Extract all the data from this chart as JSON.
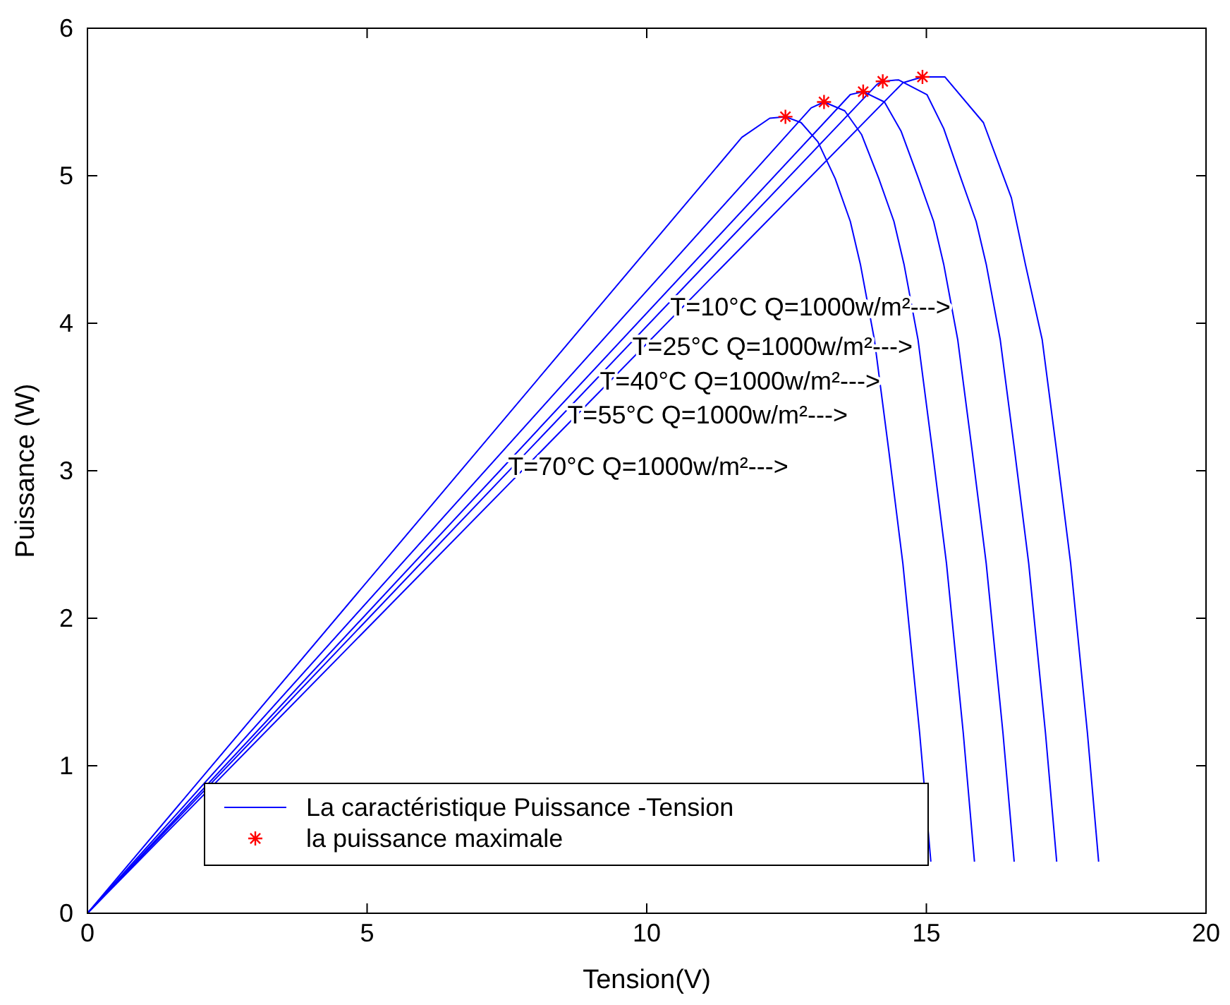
{
  "chart_data": {
    "type": "line",
    "xlabel": "Tension(V)",
    "ylabel": "Puissance (W)",
    "xlim": [
      0,
      20
    ],
    "ylim": [
      0,
      6
    ],
    "xticks": [
      0,
      5,
      10,
      15,
      20
    ],
    "yticks": [
      0,
      1,
      2,
      3,
      4,
      5,
      6
    ],
    "grid": false,
    "legend": "bottom left",
    "marker": "none",
    "line_style": "solid",
    "series": [
      {
        "name": "La caractéristique Puissance -Tension",
        "color": "#0000ff",
        "x": [
          0,
          11.7,
          12.2,
          12.48,
          12.76,
          13.06,
          13.37,
          13.64,
          13.82,
          14.07,
          14.33,
          14.58,
          14.88,
          15.08
        ],
        "values": [
          0,
          5.26,
          5.39,
          5.4,
          5.36,
          5.23,
          4.98,
          4.69,
          4.4,
          3.89,
          3.13,
          2.37,
          1.22,
          0.35
        ]
      },
      {
        "color": "#0000ff",
        "x": [
          0,
          12.94,
          13.17,
          13.54,
          13.84,
          14.15,
          14.42,
          14.6,
          14.85,
          15.11,
          15.36,
          15.66,
          15.86
        ],
        "values": [
          0,
          5.46,
          5.5,
          5.44,
          5.28,
          4.98,
          4.69,
          4.4,
          3.89,
          3.13,
          2.37,
          1.22,
          0.35
        ]
      },
      {
        "color": "#0000ff",
        "x": [
          0,
          13.64,
          13.87,
          14.25,
          14.55,
          14.86,
          15.13,
          15.31,
          15.56,
          15.82,
          16.07,
          16.37,
          16.57
        ],
        "values": [
          0,
          5.55,
          5.57,
          5.5,
          5.3,
          4.98,
          4.69,
          4.4,
          3.89,
          3.13,
          2.37,
          1.22,
          0.35
        ]
      },
      {
        "color": "#0000ff",
        "x": [
          0,
          14.12,
          14.22,
          14.5,
          15.01,
          15.31,
          15.62,
          15.89,
          16.07,
          16.32,
          16.58,
          16.83,
          17.13,
          17.33
        ],
        "values": [
          0,
          5.62,
          5.64,
          5.65,
          5.55,
          5.32,
          4.98,
          4.69,
          4.4,
          3.89,
          3.13,
          2.37,
          1.22,
          0.35
        ]
      },
      {
        "color": "#0000ff",
        "x": [
          0,
          14.58,
          14.93,
          15.33,
          16.02,
          16.52,
          16.77,
          17.07,
          17.33,
          17.58,
          17.88,
          18.08
        ],
        "values": [
          0,
          5.63,
          5.67,
          5.67,
          5.36,
          4.85,
          4.4,
          3.89,
          3.13,
          2.37,
          1.22,
          0.35
        ]
      },
      {
        "name": "la puissance maximale",
        "type": "scatter",
        "marker": "cross",
        "color": "#ff0000",
        "x": [
          12.48,
          13.17,
          13.87,
          14.22,
          14.93
        ],
        "values": [
          5.4,
          5.5,
          5.57,
          5.64,
          5.67
        ]
      }
    ],
    "annotations": [
      {
        "text": "T=10°C Q=1000w/m²--->",
        "x": 10.42,
        "y": 4.11
      },
      {
        "text": "T=25°C Q=1000w/m²--->",
        "x": 9.74,
        "y": 3.84
      },
      {
        "text": "T=40°C Q=1000w/m²--->",
        "x": 9.16,
        "y": 3.61
      },
      {
        "text": "T=55°C Q=1000w/m²--->",
        "x": 8.58,
        "y": 3.38
      },
      {
        "text": "T=70°C Q=1000w/m²--->",
        "x": 7.52,
        "y": 3.03
      }
    ]
  }
}
